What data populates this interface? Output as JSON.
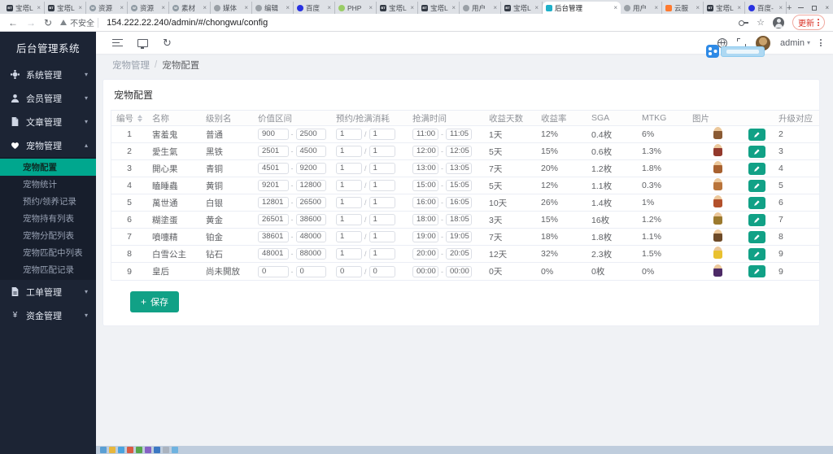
{
  "browser": {
    "tabs": [
      {
        "label": "宝塔L",
        "icon": "bt"
      },
      {
        "label": "宝塔L",
        "icon": "bt"
      },
      {
        "label": "资源",
        "icon": "wp"
      },
      {
        "label": "资源",
        "icon": "wp"
      },
      {
        "label": "素材",
        "icon": "wp"
      },
      {
        "label": "媒体",
        "icon": "globe"
      },
      {
        "label": "编辑",
        "icon": "globe"
      },
      {
        "label": "百度",
        "icon": "baidu"
      },
      {
        "label": "PHP",
        "icon": "php"
      },
      {
        "label": "宝塔L",
        "icon": "bt"
      },
      {
        "label": "宝塔L",
        "icon": "bt"
      },
      {
        "label": "用户",
        "icon": "globe"
      },
      {
        "label": "宝塔L",
        "icon": "bt"
      },
      {
        "label": "后台管理",
        "icon": "app",
        "active": true
      },
      {
        "label": "用户",
        "icon": "globe"
      },
      {
        "label": "云服",
        "icon": "cloud"
      },
      {
        "label": "宝塔L",
        "icon": "bt"
      },
      {
        "label": "百度-",
        "icon": "baidu"
      }
    ],
    "new_tab_label": "+",
    "nav": {
      "back": "←",
      "forward": "→",
      "reload": "↻"
    },
    "security_label": "不安全",
    "url": "154.222.22.240/admin/#/chongwu/config",
    "update_label": "更新"
  },
  "sidebar": {
    "title": "后台管理系统",
    "menus": [
      {
        "label": "系统管理",
        "icon": "gear-icon",
        "caret": "▾"
      },
      {
        "label": "会员管理",
        "icon": "users-icon",
        "caret": "▾"
      },
      {
        "label": "文章管理",
        "icon": "doc-icon",
        "caret": "▾"
      },
      {
        "label": "宠物管理",
        "icon": "heart-icon",
        "caret": "▴",
        "expanded": true,
        "children": [
          {
            "label": "宠物配置",
            "active": true
          },
          {
            "label": "宠物统计"
          },
          {
            "label": "预约/领养记录"
          },
          {
            "label": "宠物持有列表"
          },
          {
            "label": "宠物分配列表"
          },
          {
            "label": "宠物匹配中列表"
          },
          {
            "label": "宠物匹配记录"
          }
        ]
      },
      {
        "label": "工单管理",
        "icon": "file-icon",
        "caret": "▾"
      },
      {
        "label": "资金管理",
        "icon": "yen-icon",
        "caret": "▾"
      }
    ]
  },
  "topbar": {
    "user": "admin"
  },
  "breadcrumb": {
    "parent": "宠物管理",
    "separator": "/",
    "current": "宠物配置"
  },
  "card": {
    "title": "宠物配置",
    "save_label": "保存",
    "save_plus": "+"
  },
  "table": {
    "headers": [
      "编号",
      "名称",
      "级别名",
      "价值区间",
      "预约/抢满消耗",
      "抢满时间",
      "收益天数",
      "收益率",
      "SGA",
      "MTKG",
      "图片",
      "升级对应"
    ],
    "range_separator": "-",
    "cost_separator": "/",
    "rows": [
      {
        "id": "1",
        "name": "害羞鬼",
        "level": "普通",
        "price_min": "900",
        "price_max": "2500",
        "cost_a": "1",
        "cost_b": "1",
        "time_start": "11:00",
        "time_end": "11:05",
        "days": "1天",
        "rate": "12%",
        "sga": "0.4枚",
        "mtkg": "6%",
        "upgrade": "2",
        "pet_color": "#8a5a33"
      },
      {
        "id": "2",
        "name": "愛生氣",
        "level": "黑铁",
        "price_min": "2501",
        "price_max": "4500",
        "cost_a": "1",
        "cost_b": "1",
        "time_start": "12:00",
        "time_end": "12:05",
        "days": "5天",
        "rate": "15%",
        "sga": "0.6枚",
        "mtkg": "1.3%",
        "upgrade": "3",
        "pet_color": "#93392c"
      },
      {
        "id": "3",
        "name": "開心果",
        "level": "青铜",
        "price_min": "4501",
        "price_max": "9200",
        "cost_a": "1",
        "cost_b": "1",
        "time_start": "13:00",
        "time_end": "13:05",
        "days": "7天",
        "rate": "20%",
        "sga": "1.2枚",
        "mtkg": "1.8%",
        "upgrade": "4",
        "pet_color": "#a8612f"
      },
      {
        "id": "4",
        "name": "瞌睡蟲",
        "level": "黄铜",
        "price_min": "9201",
        "price_max": "12800",
        "cost_a": "1",
        "cost_b": "1",
        "time_start": "15:00",
        "time_end": "15:05",
        "days": "5天",
        "rate": "12%",
        "sga": "1.1枚",
        "mtkg": "0.3%",
        "upgrade": "5",
        "pet_color": "#b9743a"
      },
      {
        "id": "5",
        "name": "萬世通",
        "level": "白银",
        "price_min": "12801",
        "price_max": "26500",
        "cost_a": "1",
        "cost_b": "1",
        "time_start": "16:00",
        "time_end": "16:05",
        "days": "10天",
        "rate": "26%",
        "sga": "1.4枚",
        "mtkg": "1%",
        "upgrade": "6",
        "pet_color": "#b3502b"
      },
      {
        "id": "6",
        "name": "糊塗蛋",
        "level": "黄金",
        "price_min": "26501",
        "price_max": "38600",
        "cost_a": "1",
        "cost_b": "1",
        "time_start": "18:00",
        "time_end": "18:05",
        "days": "3天",
        "rate": "15%",
        "sga": "16枚",
        "mtkg": "1.2%",
        "upgrade": "7",
        "pet_color": "#9c7a2e"
      },
      {
        "id": "7",
        "name": "噴嚏精",
        "level": "铂金",
        "price_min": "38601",
        "price_max": "48000",
        "cost_a": "1",
        "cost_b": "1",
        "time_start": "19:00",
        "time_end": "19:05",
        "days": "7天",
        "rate": "18%",
        "sga": "1.8枚",
        "mtkg": "1.1%",
        "upgrade": "8",
        "pet_color": "#6d4a28"
      },
      {
        "id": "8",
        "name": "白雪公主",
        "level": "钻石",
        "price_min": "48001",
        "price_max": "88000",
        "cost_a": "1",
        "cost_b": "1",
        "time_start": "20:00",
        "time_end": "20:05",
        "days": "12天",
        "rate": "32%",
        "sga": "2.3枚",
        "mtkg": "1.5%",
        "upgrade": "9",
        "pet_color": "#e9c12f"
      },
      {
        "id": "9",
        "name": "皇后",
        "level": "尚未開放",
        "price_min": "0",
        "price_max": "0",
        "cost_a": "0",
        "cost_b": "0",
        "time_start": "00:00",
        "time_end": "00:00",
        "days": "0天",
        "rate": "0%",
        "sga": "0枚",
        "mtkg": "0%",
        "upgrade": "9",
        "pet_color": "#4c2a66"
      }
    ]
  },
  "colors": {
    "accent": "#11a186",
    "sidebar_active": "#00a78e",
    "update_red": "#d93025",
    "fav": {
      "bt": "#333a45",
      "wp": "#8f9aa3",
      "globe": "#9aa0a6",
      "baidu": "#2932e1",
      "php": "#99cc66",
      "cloud": "#ff7a2f",
      "app": "#1fb0c9"
    }
  },
  "taskbar_icon_colors": [
    "#5a9fd4",
    "#e8b73d",
    "#4aa3df",
    "#d95b43",
    "#57a64a",
    "#8661c5",
    "#3b78c3",
    "#aab3bf",
    "#6fb3e0"
  ]
}
